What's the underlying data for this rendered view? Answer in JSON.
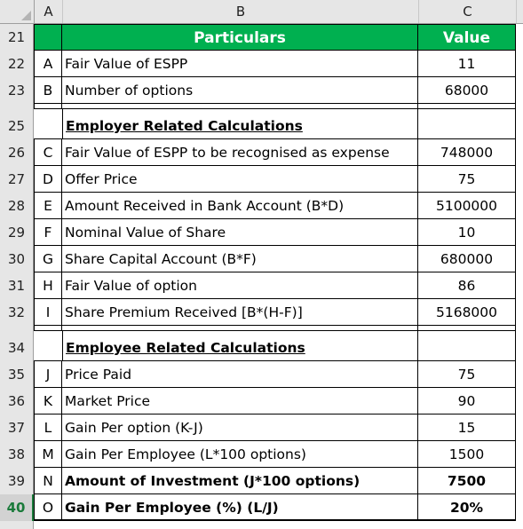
{
  "columns": [
    "A",
    "B",
    "C"
  ],
  "header_row": {
    "num": "21",
    "particulars": "Particulars",
    "value": "Value"
  },
  "rows": [
    {
      "num": "22",
      "id": "A",
      "label": "Fair Value of ESPP",
      "value": "11"
    },
    {
      "num": "23",
      "id": "B",
      "label": "Number of options",
      "value": "68000"
    },
    {
      "num": "25",
      "id": "",
      "label": "Employer Related Calculations",
      "value": ""
    },
    {
      "num": "26",
      "id": "C",
      "label": "Fair Value of ESPP to be recognised as expense",
      "value": "748000"
    },
    {
      "num": "27",
      "id": "D",
      "label": "Offer Price",
      "value": "75"
    },
    {
      "num": "28",
      "id": "E",
      "label": "Amount Received in Bank Account (B*D)",
      "value": "5100000"
    },
    {
      "num": "29",
      "id": "F",
      "label": "Nominal Value of Share",
      "value": "10"
    },
    {
      "num": "30",
      "id": "G",
      "label": "Share Capital Account (B*F)",
      "value": "680000"
    },
    {
      "num": "31",
      "id": "H",
      "label": "Fair Value of option",
      "value": "86"
    },
    {
      "num": "32",
      "id": "I",
      "label": "Share Premium Received [B*(H-F)]",
      "value": "5168000"
    },
    {
      "num": "34",
      "id": "",
      "label": "Employee Related Calculations",
      "value": ""
    },
    {
      "num": "35",
      "id": "J",
      "label": "Price Paid",
      "value": "75"
    },
    {
      "num": "36",
      "id": "K",
      "label": "Market Price",
      "value": "90"
    },
    {
      "num": "37",
      "id": "L",
      "label": "Gain Per option (K-J)",
      "value": "15"
    },
    {
      "num": "38",
      "id": "M",
      "label": "Gain Per Employee (L*100 options)",
      "value": "1500"
    },
    {
      "num": "39",
      "id": "N",
      "label": "Amount of Investment (J*100 options)",
      "value": "7500"
    },
    {
      "num": "40",
      "id": "O",
      "label": "Gain Per Employee (%) (L/J)",
      "value": "20%"
    }
  ],
  "colors": {
    "header_green": "#00b050",
    "grid_header": "#e6e6e6"
  }
}
